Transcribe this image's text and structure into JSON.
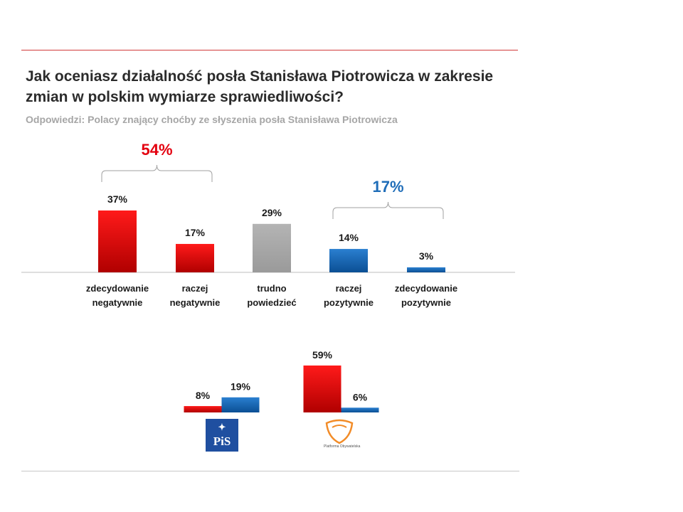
{
  "title": "Jak oceniasz działalność posła Stanisława Piotrowicza w zakresie zmian w polskim wymiarze sprawiedliwości?",
  "subtitle": "Odpowiedzi: Polacy znający choćby ze słyszenia posła Stanisława Piotrowicza",
  "colors": {
    "negative": "#e3000f",
    "neutral": "#a6a6a6",
    "positive": "#1f6db8",
    "accent_line": "#d23a3a"
  },
  "chart_data": [
    {
      "type": "bar",
      "categories": [
        [
          "zdecydowanie",
          "negatywnie"
        ],
        [
          "raczej",
          "negatywnie"
        ],
        [
          "trudno",
          "powiedzieć"
        ],
        [
          "raczej",
          "pozytywnie"
        ],
        [
          "zdecydowanie",
          "pozytywnie"
        ]
      ],
      "values": [
        37,
        17,
        29,
        14,
        3
      ],
      "value_labels": [
        "37%",
        "17%",
        "29%",
        "14%",
        "3%"
      ],
      "bar_colors": [
        "negative",
        "negative",
        "neutral",
        "positive",
        "positive"
      ],
      "groups": [
        {
          "label": "54%",
          "covers": [
            0,
            1
          ],
          "color": "negative"
        },
        {
          "label": "17%",
          "covers": [
            3,
            4
          ],
          "color": "positive"
        }
      ],
      "unit": "%"
    },
    {
      "type": "bar",
      "categories": [
        "PiS",
        "Platforma Obywatelska"
      ],
      "series": [
        {
          "values": [
            8,
            59
          ],
          "value_labels": [
            "8%",
            "59%"
          ],
          "color": "negative"
        },
        {
          "values": [
            19,
            6
          ],
          "value_labels": [
            "19%",
            "6%"
          ],
          "color": "positive"
        }
      ],
      "logos": [
        {
          "icon": "pis-logo",
          "text": "PiS"
        },
        {
          "icon": "platforma-obywatelska-logo",
          "text": "Platforma Obywatelska"
        }
      ],
      "unit": "%"
    }
  ]
}
